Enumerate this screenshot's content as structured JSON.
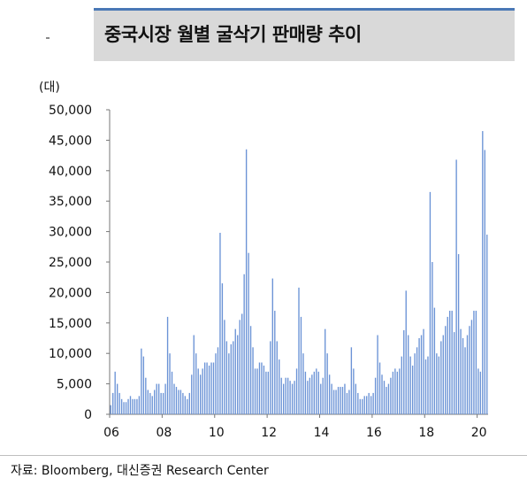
{
  "title": "중국시장 월별 굴삭기 판매량 추이",
  "source": "자료: Bloomberg, 대신증권 Research Center",
  "colors": {
    "bar": "#6b93d6",
    "title_bg": "#d9d9d9",
    "title_rule": "#4a78b6"
  },
  "chart_data": {
    "type": "bar",
    "unit_label": "(대)",
    "ylim": [
      0,
      50000
    ],
    "y_ticks": [
      "0",
      "5,000",
      "10,000",
      "15,000",
      "20,000",
      "25,000",
      "30,000",
      "35,000",
      "40,000",
      "45,000",
      "50,000"
    ],
    "x_ticks": [
      "06",
      "08",
      "10",
      "12",
      "14",
      "16",
      "18",
      "20"
    ],
    "period": "2006-01 to 2020-05 (monthly)",
    "grid": false,
    "legend": "none",
    "values": [
      1500,
      3500,
      7000,
      5000,
      3500,
      2500,
      2000,
      2000,
      2500,
      3000,
      2500,
      2500,
      2500,
      3000,
      10800,
      9500,
      6000,
      4000,
      3500,
      3000,
      4000,
      5000,
      5000,
      3500,
      3500,
      5000,
      16000,
      10000,
      7000,
      5000,
      4500,
      4000,
      4000,
      3500,
      3000,
      2500,
      3500,
      6500,
      13000,
      10000,
      7500,
      6500,
      7500,
      8500,
      8500,
      8000,
      8500,
      8500,
      10000,
      11000,
      29800,
      21500,
      15500,
      12000,
      10000,
      11500,
      12000,
      14000,
      13000,
      15500,
      16500,
      23000,
      43500,
      26500,
      14500,
      11000,
      7500,
      7500,
      8500,
      8500,
      8000,
      7000,
      7000,
      12000,
      22300,
      17000,
      12000,
      9000,
      6000,
      5000,
      6000,
      6000,
      5500,
      5000,
      5500,
      7500,
      20800,
      16000,
      10000,
      7000,
      5500,
      6000,
      6500,
      7000,
      7500,
      7000,
      5000,
      6000,
      14000,
      10000,
      6500,
      5000,
      4000,
      4000,
      4500,
      4500,
      4500,
      5000,
      3500,
      4000,
      11000,
      7500,
      5000,
      3500,
      2500,
      2500,
      3000,
      3000,
      3500,
      3000,
      3500,
      6000,
      13000,
      8500,
      6500,
      5500,
      4500,
      5000,
      6000,
      7000,
      7500,
      7000,
      7500,
      9500,
      13800,
      20300,
      13000,
      9500,
      8000,
      10000,
      11000,
      12500,
      13000,
      14000,
      9000,
      9500,
      36500,
      25000,
      17500,
      10000,
      9500,
      12000,
      13000,
      14500,
      16000,
      17000,
      17000,
      13500,
      41800,
      26300,
      14000,
      12500,
      11000,
      13000,
      14500,
      15500,
      17000,
      17000,
      7500,
      7000,
      46500,
      43400,
      29500
    ]
  }
}
